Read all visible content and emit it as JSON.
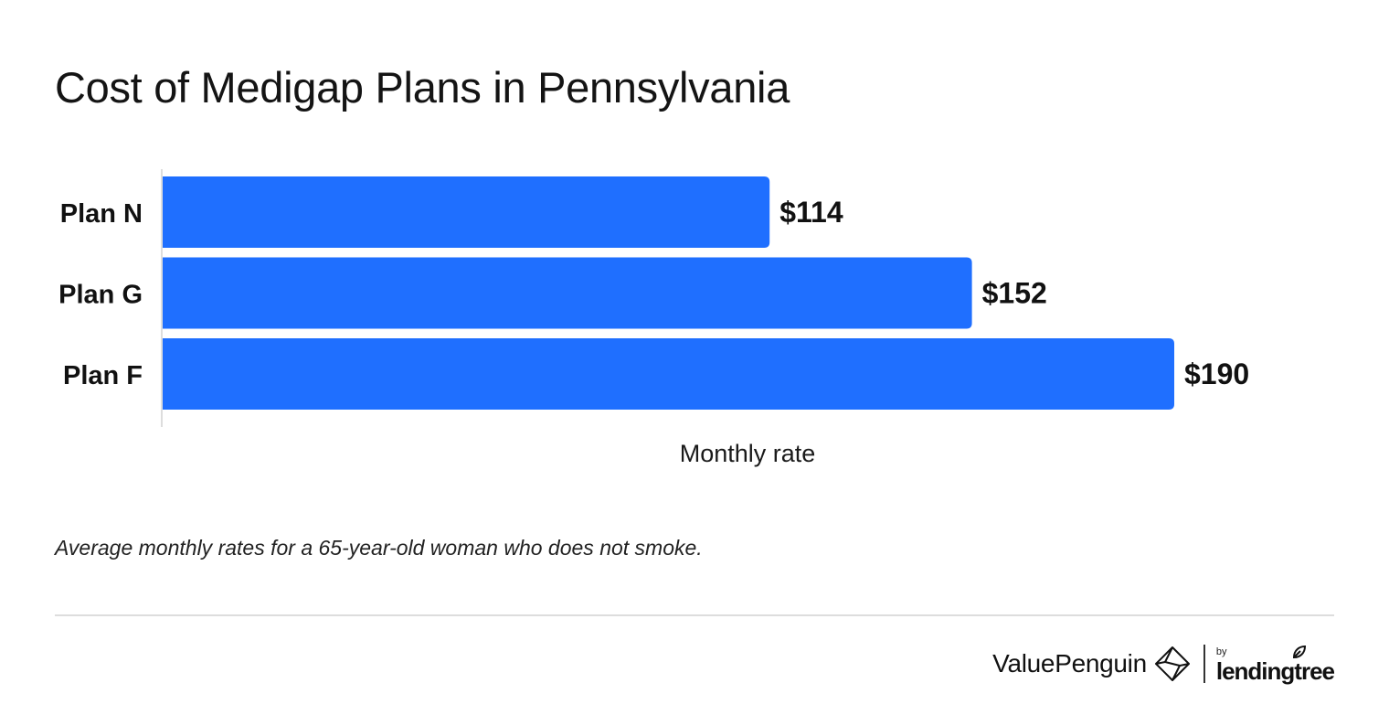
{
  "title": "Cost of Medigap Plans in Pennsylvania",
  "footnote": "Average monthly rates for a 65-year-old woman who does not smoke.",
  "brand": {
    "valuepenguin": "ValuePenguin",
    "by": "by",
    "lendingtree": "lendingtree",
    "icons": [
      "valuepenguin-logo-icon",
      "lendingtree-leaf-icon"
    ]
  },
  "colors": {
    "bar": "#1f6fff",
    "text": "#111111",
    "axis": "#dddddd"
  },
  "chart_data": {
    "type": "bar",
    "orientation": "horizontal",
    "categories": [
      "Plan N",
      "Plan G",
      "Plan F"
    ],
    "values": [
      114,
      152,
      190
    ],
    "value_labels": [
      "$114",
      "$152",
      "$190"
    ],
    "xlabel": "Monthly rate",
    "xlim": [
      0,
      190
    ],
    "grid": false,
    "legend": "none"
  }
}
